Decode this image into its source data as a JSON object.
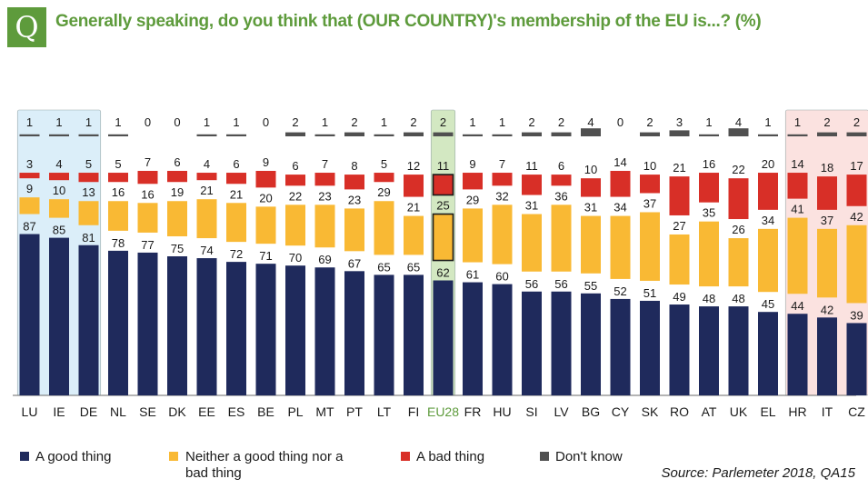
{
  "question_badge": "Q",
  "title": "Generally speaking, do you think that (OUR COUNTRY)'s membership of the EU is...? (%)",
  "source": "Source: Parlemeter 2018, QA15",
  "legend": [
    {
      "label": "A good thing",
      "color": "#1f2a5c"
    },
    {
      "label": "Neither a good thing nor a bad thing",
      "label_line1": "Neither a good thing nor a",
      "label_line2": "bad thing",
      "color": "#f9b934"
    },
    {
      "label": "A bad thing",
      "color": "#d82f27"
    },
    {
      "label": "Don't know",
      "color": "#505050"
    }
  ],
  "chart_data": {
    "type": "bar",
    "stacked": true,
    "categories": [
      "LU",
      "IE",
      "DE",
      "NL",
      "SE",
      "DK",
      "EE",
      "ES",
      "BE",
      "PL",
      "MT",
      "PT",
      "LT",
      "FI",
      "EU28",
      "FR",
      "HU",
      "SI",
      "LV",
      "BG",
      "CY",
      "SK",
      "RO",
      "AT",
      "UK",
      "EL",
      "HR",
      "IT",
      "CZ"
    ],
    "series": [
      {
        "name": "A good thing",
        "color": "#1f2a5c",
        "values": [
          87,
          85,
          81,
          78,
          77,
          75,
          74,
          72,
          71,
          70,
          69,
          67,
          65,
          65,
          62,
          61,
          60,
          56,
          56,
          55,
          52,
          51,
          49,
          48,
          48,
          45,
          44,
          42,
          39
        ]
      },
      {
        "name": "Neither a good thing nor a bad thing",
        "color": "#f9b934",
        "values": [
          9,
          10,
          13,
          16,
          16,
          19,
          21,
          21,
          20,
          22,
          23,
          23,
          29,
          21,
          25,
          29,
          32,
          31,
          36,
          31,
          34,
          37,
          27,
          35,
          26,
          34,
          41,
          37,
          42
        ]
      },
      {
        "name": "A bad thing",
        "color": "#d82f27",
        "values": [
          3,
          4,
          5,
          5,
          7,
          6,
          4,
          6,
          9,
          6,
          7,
          8,
          5,
          12,
          11,
          9,
          7,
          11,
          6,
          10,
          14,
          10,
          21,
          16,
          22,
          20,
          14,
          18,
          17
        ]
      },
      {
        "name": "Don't know",
        "color": "#505050",
        "values": [
          1,
          1,
          1,
          1,
          0,
          0,
          1,
          1,
          0,
          2,
          1,
          2,
          1,
          2,
          2,
          1,
          1,
          2,
          2,
          4,
          0,
          2,
          3,
          1,
          4,
          1,
          1,
          2,
          2
        ]
      }
    ],
    "highlight_groups": [
      {
        "categories": [
          "LU",
          "IE",
          "DE"
        ],
        "color": "#dbeef9"
      },
      {
        "categories": [
          "EU28"
        ],
        "color": "#d3e8c2"
      },
      {
        "categories": [
          "HR",
          "IT",
          "CZ"
        ],
        "color": "#fbe2e0"
      }
    ],
    "highlighted_category": "EU28",
    "highlighted_label_color": "#5e9b3c",
    "ylim": [
      0,
      100
    ],
    "grid": false
  }
}
